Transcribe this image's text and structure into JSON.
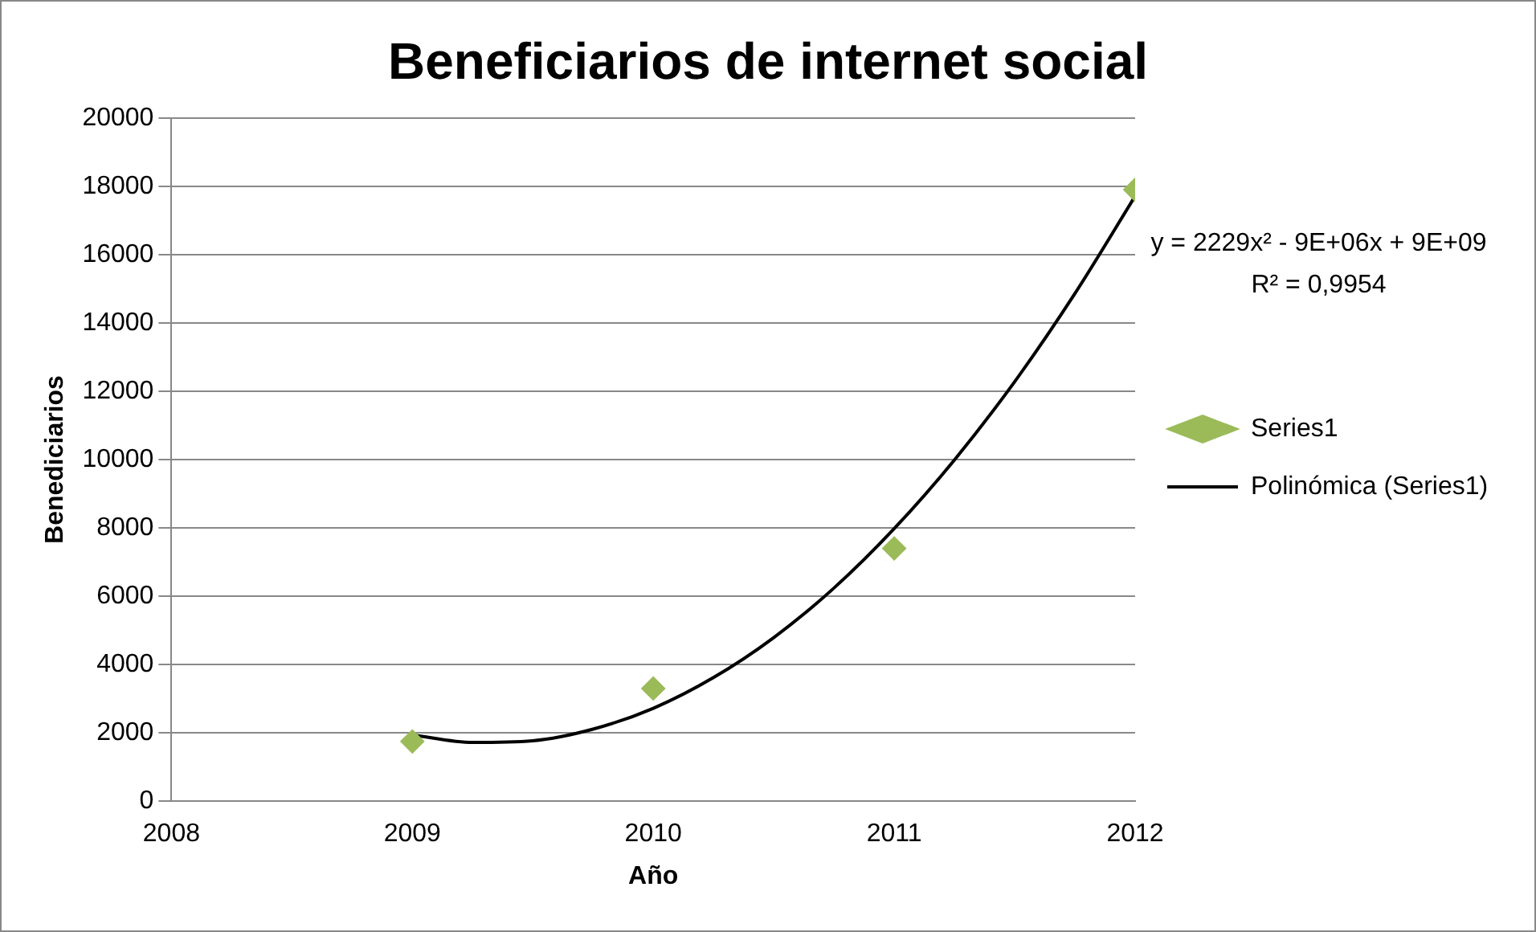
{
  "chart_data": {
    "type": "scatter",
    "title": "Beneficiarios de internet social",
    "xlabel": "Año",
    "ylabel": "Benediciarios",
    "x": [
      2009,
      2010,
      2011,
      2012
    ],
    "series": [
      {
        "name": "Series1",
        "color": "#9bbb59",
        "marker": "diamond",
        "values": [
          1750,
          3300,
          7400,
          17900
        ]
      },
      {
        "name": "Polinómica (Series1)",
        "type": "line",
        "color": "#000000",
        "x": [
          2009,
          2009.25,
          2009.5,
          2009.75,
          2010,
          2010.25,
          2010.5,
          2010.75,
          2011,
          2011.25,
          2011.5,
          2011.75,
          2012
        ],
        "values": [
          1940,
          1720,
          1770,
          2110,
          2720,
          3620,
          4790,
          6240,
          7980,
          9990,
          12280,
          14860,
          17710
        ]
      }
    ],
    "annotations": [
      "y = 2229x² - 9E+06x + 9E+09",
      "R² = 0,9954"
    ],
    "xlim": [
      2008,
      2012
    ],
    "xticks": [
      2008,
      2009,
      2010,
      2011,
      2012
    ],
    "ylim": [
      0,
      20000
    ],
    "yticks": [
      0,
      2000,
      4000,
      6000,
      8000,
      10000,
      12000,
      14000,
      16000,
      18000,
      20000
    ],
    "grid": "y",
    "legend": "right"
  }
}
